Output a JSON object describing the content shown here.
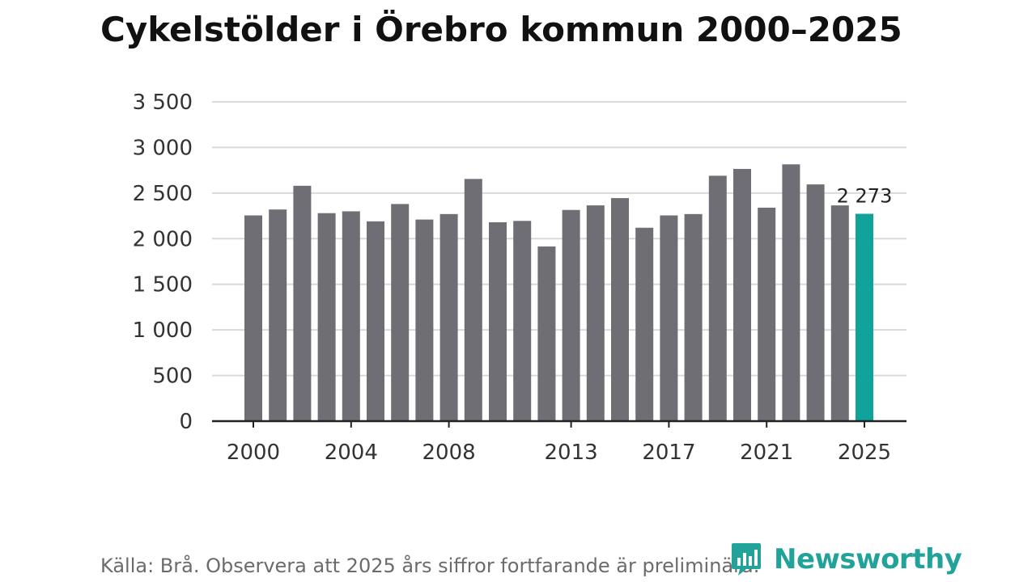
{
  "title": "Cykelstölder i Örebro kommun 2000–2025",
  "source": "Källa: Brå. Observera att 2025 års siffror fortfarande är preliminära.",
  "brand": {
    "name": "Newsworthy",
    "icon": "newsworthy-logo-icon"
  },
  "colors": {
    "bar": "#6f6e74",
    "highlight": "#0fa39a",
    "grid": "#d9d9d9",
    "axis": "#222222",
    "text": "#333333"
  },
  "chart_data": {
    "type": "bar",
    "categories": [
      "2000",
      "2001",
      "2002",
      "2003",
      "2004",
      "2005",
      "2006",
      "2007",
      "2008",
      "2009",
      "2010",
      "2011",
      "2012",
      "2013",
      "2014",
      "2015",
      "2016",
      "2017",
      "2018",
      "2019",
      "2020",
      "2021",
      "2022",
      "2023",
      "2024",
      "2025"
    ],
    "values": [
      2255,
      2320,
      2580,
      2280,
      2300,
      2190,
      2380,
      2210,
      2270,
      2655,
      2180,
      2195,
      1915,
      2315,
      2365,
      2445,
      2120,
      2255,
      2270,
      2690,
      2765,
      2340,
      2815,
      2595,
      2365,
      2273
    ],
    "highlight_index": 25,
    "highlight_label": "2 273",
    "xtick_labels": [
      "2000",
      "2004",
      "2008",
      "2013",
      "2017",
      "2021",
      "2025"
    ],
    "ytick_values": [
      0,
      500,
      1000,
      1500,
      2000,
      2500,
      3000,
      3500
    ],
    "ytick_labels": [
      "0",
      "500",
      "1 000",
      "1 500",
      "2 000",
      "2 500",
      "3 000",
      "3 500"
    ],
    "ylim": [
      0,
      3500
    ],
    "grid": true,
    "xlabel": "",
    "ylabel": ""
  }
}
